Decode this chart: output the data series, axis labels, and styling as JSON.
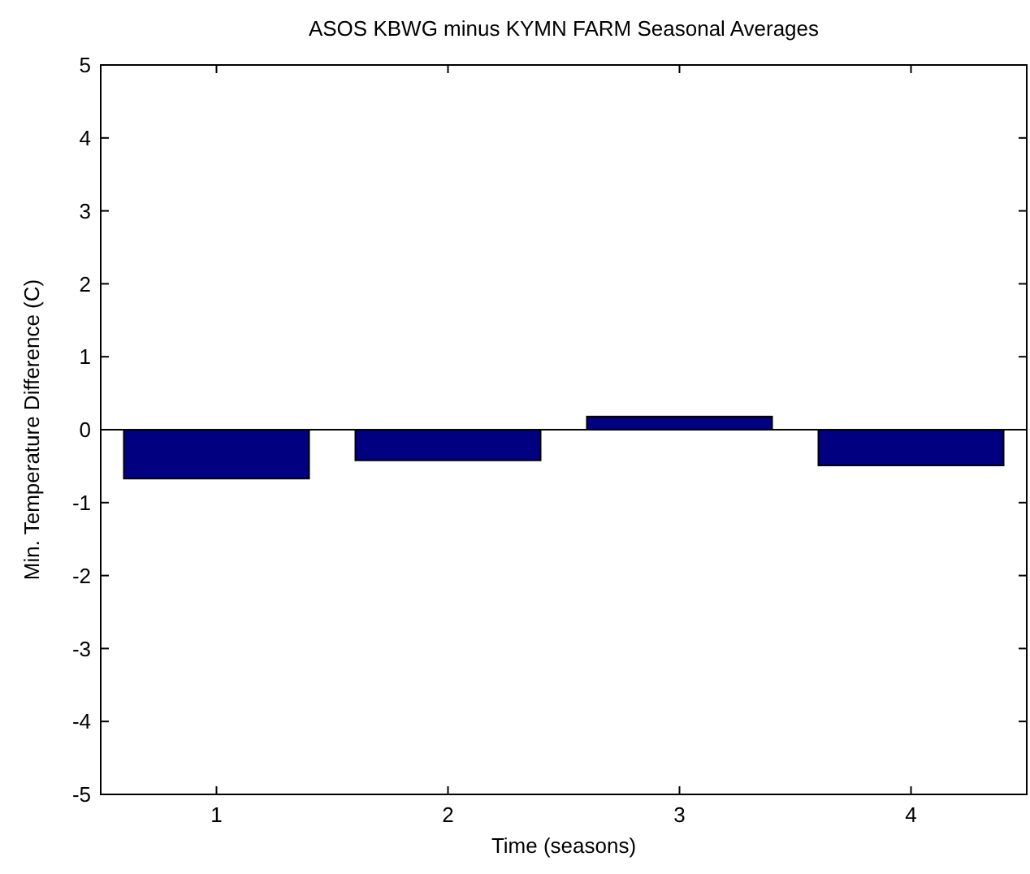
{
  "chart_data": {
    "type": "bar",
    "title": "ASOS KBWG minus KYMN FARM Seasonal Averages",
    "xlabel": "Time (seasons)",
    "ylabel": "Min. Temperature Difference (C)",
    "categories": [
      "1",
      "2",
      "3",
      "4"
    ],
    "series": [
      {
        "color": "#000080",
        "values": [
          -0.67,
          -0.42,
          0.18,
          -0.49
        ]
      }
    ],
    "ylim": [
      -5,
      5
    ],
    "yticks": [
      -5,
      -4,
      -3,
      -2,
      -1,
      0,
      1,
      2,
      3,
      4,
      5
    ]
  }
}
